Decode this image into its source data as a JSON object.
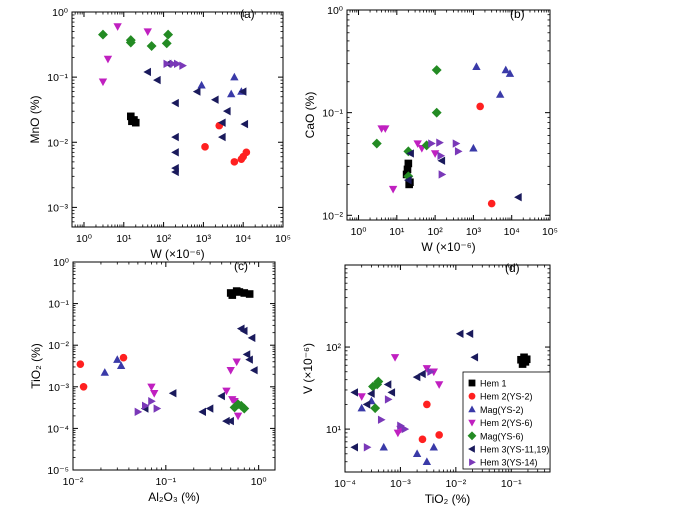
{
  "chart_data": [
    {
      "panel": "(a)",
      "type": "scatter",
      "xlabel": "W (×10⁻⁶)",
      "ylabel": "MnO (%)",
      "xscale": "log",
      "yscale": "log",
      "xlim": [
        0.5,
        100000
      ],
      "ylim": [
        0.0005,
        1
      ],
      "xticks": [
        [
          1,
          "10⁰"
        ],
        [
          10,
          "10¹"
        ],
        [
          100,
          "10²"
        ],
        [
          1000,
          "10³"
        ],
        [
          10000,
          "10⁴"
        ],
        [
          100000,
          "10⁵"
        ]
      ],
      "yticks": [
        [
          0.001,
          "10⁻³"
        ],
        [
          0.01,
          "10⁻²"
        ],
        [
          0.1,
          "10⁻¹"
        ],
        [
          1,
          "10⁰"
        ]
      ],
      "series": [
        {
          "name": "Hem 1",
          "points": [
            [
              15,
              0.025
            ],
            [
              18,
              0.022
            ],
            [
              20,
              0.02
            ],
            [
              16,
              0.021
            ]
          ]
        },
        {
          "name": "Hem 2(YS-2)",
          "points": [
            [
              1100,
              0.0085
            ],
            [
              2500,
              0.018
            ],
            [
              6000,
              0.005
            ],
            [
              9000,
              0.0055
            ],
            [
              10000,
              0.006
            ],
            [
              12000,
              0.007
            ]
          ]
        },
        {
          "name": "Mag(YS-2)",
          "points": [
            [
              900,
              0.075
            ],
            [
              5000,
              0.055
            ],
            [
              6000,
              0.1
            ],
            [
              9000,
              0.06
            ]
          ]
        },
        {
          "name": "Hem 2(YS-6)",
          "points": [
            [
              3,
              0.085
            ],
            [
              4,
              0.19
            ],
            [
              7,
              0.6
            ],
            [
              40,
              0.5
            ]
          ]
        },
        {
          "name": "Mag(YS-6)",
          "points": [
            [
              3,
              0.45
            ],
            [
              15,
              0.34
            ],
            [
              15,
              0.37
            ],
            [
              50,
              0.3
            ],
            [
              120,
              0.33
            ],
            [
              130,
              0.45
            ]
          ]
        },
        {
          "name": "Hem 3(YS-11,19)",
          "points": [
            [
              40,
              0.12
            ],
            [
              70,
              0.09
            ],
            [
              130,
              0.16
            ],
            [
              200,
              0.04
            ],
            [
              200,
              0.012
            ],
            [
              200,
              0.007
            ],
            [
              200,
              0.004
            ],
            [
              200,
              0.0035
            ],
            [
              700,
              0.06
            ],
            [
              2000,
              0.045
            ],
            [
              3000,
              0.02
            ],
            [
              3000,
              0.012
            ],
            [
              4000,
              0.03
            ],
            [
              10000,
              0.06
            ],
            [
              11000,
              0.019
            ]
          ]
        },
        {
          "name": "Hem 3(YS-14)",
          "points": [
            [
              120,
              0.16
            ],
            [
              170,
              0.16
            ],
            [
              220,
              0.16
            ],
            [
              300,
              0.15
            ]
          ]
        }
      ]
    },
    {
      "panel": "(b)",
      "type": "scatter",
      "xlabel": "W (×10⁻⁶)",
      "ylabel": "CaO (%)",
      "xscale": "log",
      "yscale": "log",
      "xlim": [
        0.5,
        100000
      ],
      "ylim": [
        0.009,
        1
      ],
      "xticks": [
        [
          1,
          "10⁰"
        ],
        [
          10,
          "10¹"
        ],
        [
          100,
          "10²"
        ],
        [
          1000,
          "10³"
        ],
        [
          10000,
          "10⁴"
        ],
        [
          100000,
          "10⁵"
        ]
      ],
      "yticks": [
        [
          0.01,
          "10⁻²"
        ],
        [
          0.1,
          "10⁻¹"
        ],
        [
          1,
          "10⁰"
        ]
      ],
      "series": [
        {
          "name": "Hem 1",
          "points": [
            [
              18,
              0.025
            ],
            [
              19,
              0.028
            ],
            [
              20,
              0.032
            ],
            [
              21,
              0.02
            ],
            [
              22,
              0.021
            ]
          ]
        },
        {
          "name": "Hem 2(YS-2)",
          "points": [
            [
              1500,
              0.115
            ],
            [
              3000,
              0.013
            ]
          ]
        },
        {
          "name": "Mag(YS-2)",
          "points": [
            [
              1000,
              0.045
            ],
            [
              1200,
              0.28
            ],
            [
              5000,
              0.15
            ],
            [
              7000,
              0.26
            ],
            [
              9000,
              0.24
            ]
          ]
        },
        {
          "name": "Hem 2(YS-6)",
          "points": [
            [
              4,
              0.07
            ],
            [
              5,
              0.07
            ],
            [
              8,
              0.018
            ],
            [
              35,
              0.05
            ],
            [
              45,
              0.045
            ],
            [
              100,
              0.04
            ]
          ]
        },
        {
          "name": "Mag(YS-6)",
          "points": [
            [
              3,
              0.05
            ],
            [
              20,
              0.042
            ],
            [
              20,
              0.024
            ],
            [
              60,
              0.048
            ],
            [
              110,
              0.26
            ],
            [
              110,
              0.1
            ]
          ]
        },
        {
          "name": "Hem 3(YS-11,19)",
          "points": [
            [
              20,
              0.022
            ],
            [
              23,
              0.04
            ],
            [
              150,
              0.034
            ],
            [
              15000,
              0.015
            ]
          ]
        },
        {
          "name": "Hem 3(YS-14)",
          "points": [
            [
              80,
              0.05
            ],
            [
              130,
              0.051
            ],
            [
              140,
              0.038
            ],
            [
              150,
              0.025
            ],
            [
              350,
              0.05
            ],
            [
              400,
              0.042
            ]
          ]
        }
      ]
    },
    {
      "panel": "(c)",
      "type": "scatter",
      "xlabel": "Al₂O₃ (%)",
      "ylabel": "TiO₂ (%)",
      "xscale": "log",
      "yscale": "log",
      "xlim": [
        0.01,
        1.5
      ],
      "ylim": [
        1e-05,
        1
      ],
      "xticks": [
        [
          0.01,
          "10⁻²"
        ],
        [
          0.1,
          "10⁻¹"
        ],
        [
          1,
          "10⁰"
        ]
      ],
      "yticks": [
        [
          1e-05,
          "10⁻⁵"
        ],
        [
          0.0001,
          "10⁻⁴"
        ],
        [
          0.001,
          "10⁻³"
        ],
        [
          0.01,
          "10⁻²"
        ],
        [
          0.1,
          "10⁻¹"
        ],
        [
          1,
          "10⁰"
        ]
      ],
      "series": [
        {
          "name": "Hem 1",
          "points": [
            [
              0.5,
              0.18
            ],
            [
              0.52,
              0.16
            ],
            [
              0.58,
              0.2
            ],
            [
              0.62,
              0.19
            ],
            [
              0.7,
              0.18
            ],
            [
              0.8,
              0.17
            ]
          ]
        },
        {
          "name": "Hem 2(YS-2)",
          "points": [
            [
              0.012,
              0.0035
            ],
            [
              0.013,
              0.001
            ],
            [
              0.035,
              0.005
            ]
          ]
        },
        {
          "name": "Mag(YS-2)",
          "points": [
            [
              0.022,
              0.0022
            ],
            [
              0.03,
              0.0045
            ],
            [
              0.033,
              0.0032
            ]
          ]
        },
        {
          "name": "Hem 2(YS-6)",
          "points": [
            [
              0.07,
              0.001
            ],
            [
              0.075,
              0.0007
            ],
            [
              0.45,
              0.0008
            ],
            [
              0.5,
              0.0025
            ],
            [
              0.52,
              0.0005
            ],
            [
              0.55,
              0.00045
            ],
            [
              0.58,
              0.004
            ],
            [
              0.6,
              0.0002
            ]
          ]
        },
        {
          "name": "Mag(YS-6)",
          "points": [
            [
              0.55,
              0.00032
            ],
            [
              0.6,
              0.00038
            ],
            [
              0.65,
              0.00035
            ],
            [
              0.7,
              0.0003
            ]
          ]
        },
        {
          "name": "Hem 3(YS-11,19)",
          "points": [
            [
              0.06,
              0.0003
            ],
            [
              0.12,
              0.0007
            ],
            [
              0.25,
              0.00025
            ],
            [
              0.3,
              0.0003
            ],
            [
              0.4,
              0.0006
            ],
            [
              0.45,
              0.00015
            ],
            [
              0.5,
              0.00015
            ],
            [
              0.65,
              0.025
            ],
            [
              0.7,
              0.022
            ],
            [
              0.75,
              0.006
            ],
            [
              0.8,
              0.0045
            ],
            [
              0.85,
              0.015
            ],
            [
              0.9,
              0.0025
            ]
          ]
        },
        {
          "name": "Hem 3(YS-14)",
          "points": [
            [
              0.05,
              0.00025
            ],
            [
              0.06,
              0.00035
            ],
            [
              0.07,
              0.00045
            ],
            [
              0.08,
              0.0003
            ]
          ]
        }
      ]
    },
    {
      "panel": "(d)",
      "type": "scatter",
      "xlabel": "TiO₂ (%)",
      "ylabel": "V (×10⁻⁶)",
      "xscale": "log",
      "yscale": "log",
      "xlim": [
        0.0001,
        0.5
      ],
      "ylim": [
        3,
        1000
      ],
      "xticks": [
        [
          0.0001,
          "10⁻⁴"
        ],
        [
          0.001,
          "10⁻³"
        ],
        [
          0.01,
          "10⁻²"
        ],
        [
          0.1,
          "10⁻¹"
        ]
      ],
      "yticks": [
        [
          10,
          "10¹"
        ],
        [
          100,
          "10²"
        ]
      ],
      "series": [
        {
          "name": "Hem 1",
          "points": [
            [
              0.15,
              70
            ],
            [
              0.16,
              62
            ],
            [
              0.17,
              75
            ],
            [
              0.18,
              66
            ],
            [
              0.19,
              71
            ]
          ]
        },
        {
          "name": "Hem 2(YS-2)",
          "points": [
            [
              0.0025,
              7.5
            ],
            [
              0.003,
              20
            ],
            [
              0.005,
              8.5
            ]
          ]
        },
        {
          "name": "Mag(YS-2)",
          "points": [
            [
              0.0002,
              18
            ],
            [
              0.0003,
              22
            ],
            [
              0.0005,
              6
            ],
            [
              0.002,
              5
            ],
            [
              0.003,
              4
            ],
            [
              0.004,
              6
            ]
          ]
        },
        {
          "name": "Hem 2(YS-6)",
          "points": [
            [
              0.0002,
              25
            ],
            [
              0.0008,
              75
            ],
            [
              0.0009,
              9
            ],
            [
              0.001,
              10
            ],
            [
              0.003,
              55
            ],
            [
              0.004,
              50
            ],
            [
              0.005,
              35
            ]
          ]
        },
        {
          "name": "Mag(YS-6)",
          "points": [
            [
              0.00032,
              33
            ],
            [
              0.00035,
              18
            ],
            [
              0.00038,
              35
            ],
            [
              0.0004,
              38
            ]
          ]
        },
        {
          "name": "Hem 3(YS-11,19)",
          "points": [
            [
              0.00015,
              6
            ],
            [
              0.00015,
              28
            ],
            [
              0.00025,
              20
            ],
            [
              0.0003,
              27
            ],
            [
              0.0006,
              35
            ],
            [
              0.0007,
              28
            ],
            [
              0.002,
              43
            ],
            [
              0.0025,
              47
            ],
            [
              0.012,
              145
            ],
            [
              0.018,
              145
            ],
            [
              0.022,
              75
            ]
          ]
        },
        {
          "name": "Hem 3(YS-14)",
          "points": [
            [
              0.00025,
              6
            ],
            [
              0.00045,
              13
            ],
            [
              0.0006,
              23
            ],
            [
              0.001,
              11
            ],
            [
              0.0012,
              10
            ],
            [
              0.0035,
              50
            ]
          ]
        }
      ]
    }
  ],
  "legend": {
    "items": [
      {
        "label": "Hem 1",
        "marker": "square",
        "color": "#000000"
      },
      {
        "label": "Hem 2(YS-2)",
        "marker": "circle",
        "color": "#ff2020"
      },
      {
        "label": "Mag(YS-2)",
        "marker": "triangle-up",
        "color": "#3a3aa8"
      },
      {
        "label": "Hem 2(YS-6)",
        "marker": "triangle-down",
        "color": "#c020c0"
      },
      {
        "label": "Mag(YS-6)",
        "marker": "diamond",
        "color": "#238b23"
      },
      {
        "label": "Hem 3(YS-11,19)",
        "marker": "triangle-left",
        "color": "#1a1a5c"
      },
      {
        "label": "Hem 3(YS-14)",
        "marker": "triangle-right",
        "color": "#7a38b8"
      }
    ]
  }
}
